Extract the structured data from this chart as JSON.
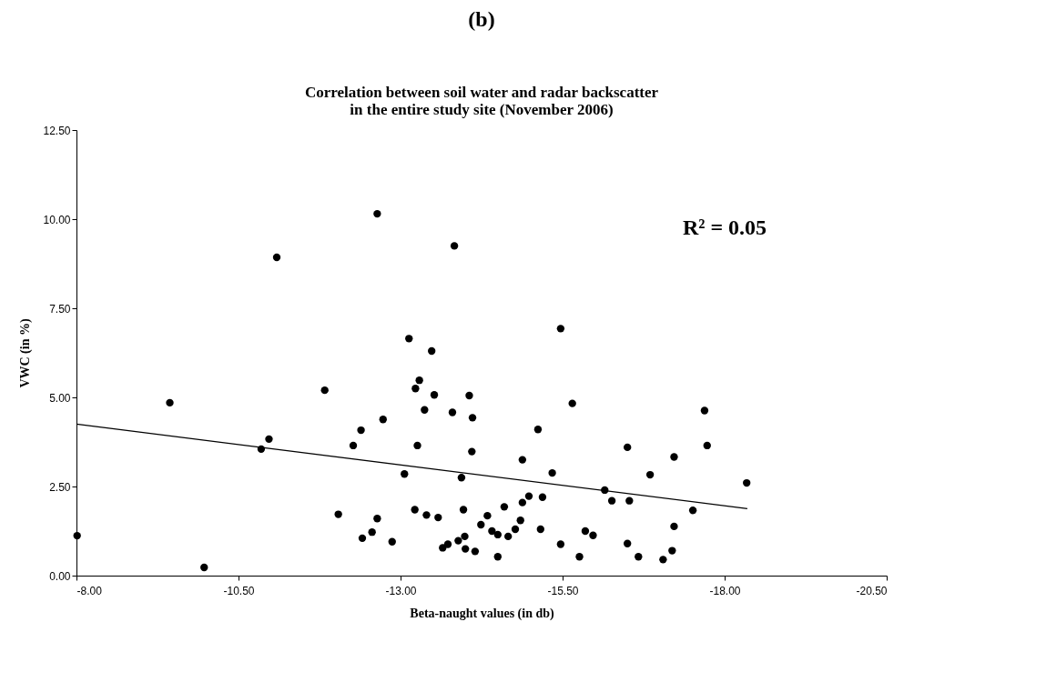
{
  "chart_data": {
    "type": "scatter",
    "title": "(b)",
    "subtitle": "Correlation between soil water and radar backscatter\nin the entire study site (November 2006)",
    "xlabel": "Beta-naught values (in db)",
    "ylabel": "VWC (in %)",
    "annotations": [
      "R² = 0.05"
    ],
    "xlim": [
      -8,
      -20.5
    ],
    "xticks": [
      {
        "value": -8,
        "label": "-8.00"
      },
      {
        "value": -10.5,
        "label": "-10.50"
      },
      {
        "value": -13,
        "label": "-13.00"
      },
      {
        "value": -15.5,
        "label": "-15.50"
      },
      {
        "value": -18,
        "label": "-18.00"
      },
      {
        "value": -20.5,
        "label": "-20.50"
      }
    ],
    "ylim": [
      0,
      12.5
    ],
    "yticks": [
      {
        "value": 0,
        "label": "0.00"
      },
      {
        "value": 2.5,
        "label": "2.50"
      },
      {
        "value": 5,
        "label": "5.00"
      },
      {
        "value": 7.5,
        "label": "7.50"
      },
      {
        "value": 10,
        "label": "10.00"
      },
      {
        "value": 12.5,
        "label": "12.50"
      }
    ],
    "grid": false,
    "marker": "circle",
    "series": [
      {
        "color": "#000000",
        "x": [
          -8.01,
          -9.44,
          -9.97,
          -11.09,
          -10.85,
          -10.97,
          -11.83,
          -12.04,
          -12.27,
          -12.39,
          -12.41,
          -12.64,
          -12.56,
          -12.64,
          -12.73,
          -12.87,
          -13.06,
          -13.13,
          -13.22,
          -13.23,
          -13.29,
          -13.26,
          -13.37,
          -13.4,
          -13.48,
          -13.52,
          -13.58,
          -13.65,
          -13.73,
          -13.8,
          -13.83,
          -13.89,
          -13.94,
          -13.97,
          -13.99,
          -14.0,
          -14.06,
          -14.1,
          -14.11,
          -14.15,
          -14.24,
          -14.34,
          -14.41,
          -14.5,
          -14.5,
          -14.6,
          -14.66,
          -14.77,
          -14.85,
          -14.88,
          -14.88,
          -14.98,
          -15.12,
          -15.16,
          -15.19,
          -15.34,
          -15.47,
          -15.65,
          -15.47,
          -15.76,
          -15.85,
          -15.97,
          -16.15,
          -16.26,
          -16.5,
          -16.53,
          -16.5,
          -16.67,
          -16.85,
          -17.05,
          -17.19,
          -17.22,
          -17.22,
          -17.51,
          -17.69,
          -17.73,
          -18.34
        ],
        "values": [
          1.12,
          4.85,
          0.23,
          8.93,
          3.55,
          3.83,
          5.2,
          1.72,
          3.65,
          4.08,
          1.05,
          10.15,
          1.22,
          1.6,
          4.38,
          0.95,
          2.85,
          6.65,
          1.85,
          5.25,
          5.48,
          3.65,
          4.65,
          1.7,
          6.3,
          5.07,
          1.63,
          0.78,
          0.88,
          4.58,
          9.25,
          0.98,
          2.75,
          1.85,
          1.1,
          0.75,
          5.05,
          3.48,
          4.43,
          0.68,
          1.43,
          1.68,
          1.25,
          1.15,
          0.53,
          1.93,
          1.1,
          1.3,
          1.55,
          2.05,
          3.25,
          2.23,
          4.1,
          1.3,
          2.2,
          2.88,
          6.93,
          4.83,
          0.88,
          0.53,
          1.25,
          1.13,
          2.4,
          2.1,
          3.6,
          2.1,
          0.9,
          0.53,
          2.83,
          0.45,
          0.7,
          1.38,
          3.33,
          1.83,
          4.63,
          3.65,
          2.6
        ]
      },
      {
        "type": "line",
        "color": "#000000",
        "line_style": "solid",
        "marker": "none",
        "x": [
          -8,
          -18.35
        ],
        "values": [
          4.25,
          1.88
        ]
      }
    ]
  }
}
